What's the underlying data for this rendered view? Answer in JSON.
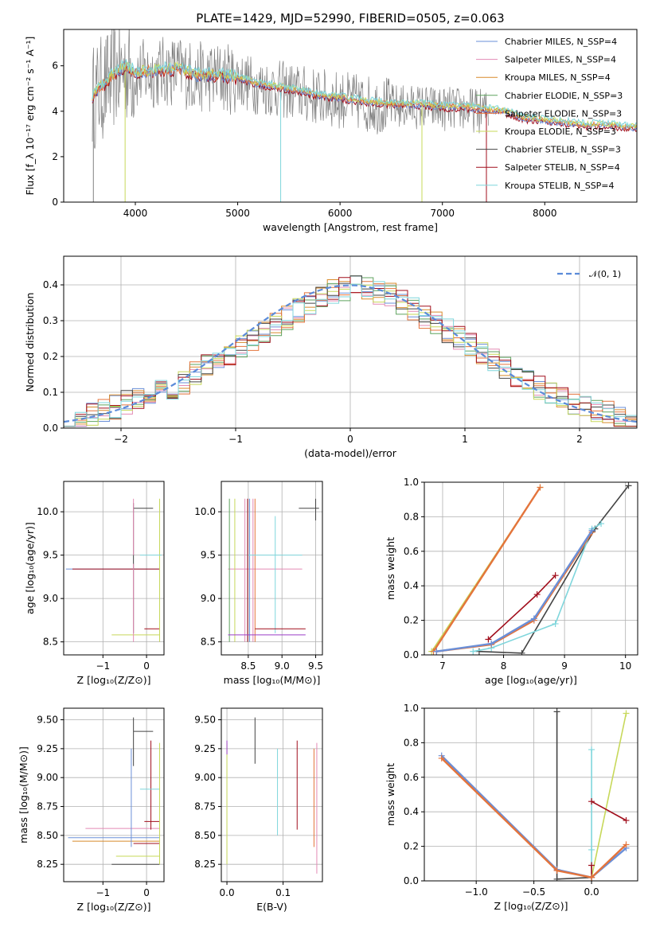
{
  "figure_title": "PLATE=1429, MJD=52990, FIBERID=0505, z=0.063",
  "colors": {
    "chabrier_miles": "#6a8fd8",
    "salpeter_miles": "#e38ab4",
    "kroupa_miles": "#d88a2a",
    "chabrier_elodie": "#5fa35f",
    "salpeter_elodie": "#e4743c",
    "kroupa_elodie": "#c7d85a",
    "chabrier_stelib": "#444444",
    "salpeter_stelib": "#a10e1c",
    "kroupa_stelib": "#7fd6dc",
    "data_spectrum": "#808080",
    "normal_curve": "#5b8bd9",
    "purple": "#9b3fc8"
  },
  "chart_data": [
    {
      "panel": "spectrum",
      "type": "line",
      "title": "PLATE=1429, MJD=52990, FIBERID=0505, z=0.063",
      "xlabel": "wavelength [Angstrom, rest frame]",
      "ylabel": "Flux [f_λ 10⁻¹⁷ erg cm⁻² s⁻¹ A⁻¹]",
      "xlim": [
        3300,
        8900
      ],
      "ylim": [
        0,
        7.6
      ],
      "xticks": [
        "4000",
        "5000",
        "6000",
        "7000",
        "8000"
      ],
      "yticks": [
        "0",
        "2",
        "4",
        "6"
      ],
      "grid": false,
      "legend_position": "top-right",
      "legend": [
        "Chabrier MILES, N_SSP=4",
        "Salpeter MILES, N_SSP=4",
        "Kroupa MILES, N_SSP=4",
        "Chabrier ELODIE, N_SSP=3",
        "Salpeter ELODIE, N_SSP=3",
        "Kroupa ELODIE, N_SSP=3",
        "Chabrier STELIB, N_SSP=3",
        "Salpeter STELIB, N_SSP=4",
        "Kroupa STELIB, N_SSP=4"
      ],
      "model_continuum": {
        "x": [
          3580,
          3700,
          3800,
          3900,
          4000,
          4200,
          4400,
          4600,
          4800,
          5000,
          5200,
          5500,
          5800,
          6000,
          6300,
          6600,
          6800,
          7000,
          7200,
          7400,
          7600,
          7800,
          8000,
          8200,
          8400,
          8600,
          8800
        ],
        "y": [
          4.6,
          5.1,
          5.6,
          5.9,
          5.6,
          5.7,
          5.8,
          5.5,
          5.5,
          5.4,
          5.1,
          4.9,
          4.6,
          4.5,
          4.3,
          4.2,
          4.2,
          4.1,
          4.1,
          4.0,
          3.9,
          3.6,
          3.5,
          3.4,
          3.3,
          3.3,
          3.2
        ]
      },
      "data_spectrum_range": [
        3580,
        7450
      ]
    },
    {
      "panel": "residual_histogram",
      "type": "line",
      "xlabel": "(data-model)/error",
      "ylabel": "Normed distribution",
      "xlim": [
        -2.5,
        2.5
      ],
      "ylim": [
        0,
        0.48
      ],
      "xticks": [
        "−2",
        "−1",
        "0",
        "1",
        "2"
      ],
      "yticks": [
        "0.0",
        "0.1",
        "0.2",
        "0.3",
        "0.4"
      ],
      "grid": true,
      "legend_position": "top-right",
      "legend": [
        "𝒩(0, 1)"
      ],
      "bin_edges_start": -2.5,
      "bin_width": 0.1,
      "hist_base": [
        0.02,
        0.03,
        0.04,
        0.05,
        0.06,
        0.07,
        0.08,
        0.09,
        0.1,
        0.11,
        0.13,
        0.15,
        0.17,
        0.19,
        0.21,
        0.23,
        0.25,
        0.27,
        0.29,
        0.31,
        0.33,
        0.35,
        0.37,
        0.38,
        0.39,
        0.4,
        0.39,
        0.38,
        0.37,
        0.35,
        0.33,
        0.31,
        0.29,
        0.27,
        0.25,
        0.23,
        0.21,
        0.19,
        0.17,
        0.15,
        0.13,
        0.11,
        0.1,
        0.09,
        0.07,
        0.06,
        0.05,
        0.04,
        0.03,
        0.02
      ]
    },
    {
      "panel": "age_vs_Z",
      "type": "scatter",
      "xlabel": "Z [log₁₀(Z/Z⊙)]",
      "ylabel": "age  [log₁₀(age/yr)]",
      "xlim": [
        -1.9,
        0.4
      ],
      "ylim": [
        8.35,
        10.35
      ],
      "xticks": [
        "−1",
        "0"
      ],
      "yticks": [
        "8.5",
        "9.0",
        "9.5",
        "10.0"
      ],
      "grid": true
    },
    {
      "panel": "age_vs_mass",
      "type": "scatter",
      "xlabel": "mass [log₁₀(M/M⊙)]",
      "ylabel": "",
      "xlim": [
        8.1,
        9.6
      ],
      "ylim": [
        8.35,
        10.35
      ],
      "xticks": [
        "8.5",
        "9.0",
        "9.5"
      ],
      "yticks": [
        "8.5",
        "9.0",
        "9.5",
        "10.0"
      ],
      "grid": true
    },
    {
      "panel": "mass_weight_vs_age",
      "type": "line",
      "xlabel": "age  [log₁₀(age/yr)]",
      "ylabel": "mass weight",
      "xlim": [
        6.7,
        10.2
      ],
      "ylim": [
        0,
        1.0
      ],
      "xticks": [
        "7",
        "8",
        "9",
        "10"
      ],
      "yticks": [
        "0.0",
        "0.2",
        "0.4",
        "0.6",
        "0.8",
        "1.0"
      ],
      "grid": true,
      "series": [
        {
          "color": "kroupa_elodie",
          "x": [
            6.82,
            8.6
          ],
          "y": [
            0.02,
            0.97
          ]
        },
        {
          "color": "salpeter_elodie",
          "x": [
            6.85,
            8.6
          ],
          "y": [
            0.02,
            0.97
          ]
        },
        {
          "color": "chabrier_stelib",
          "x": [
            7.6,
            8.3,
            9.5,
            10.05
          ],
          "y": [
            0.02,
            0.01,
            0.73,
            0.98
          ]
        },
        {
          "color": "salpeter_stelib",
          "x": [
            7.75,
            8.55,
            8.85
          ],
          "y": [
            0.09,
            0.35,
            0.46
          ]
        },
        {
          "color": "kroupa_stelib",
          "x": [
            7.5,
            7.8,
            8.85,
            9.45,
            9.6
          ],
          "y": [
            0.02,
            0.04,
            0.18,
            0.73,
            0.76
          ]
        },
        {
          "color": "salpeter_elodie",
          "x": [
            6.9,
            7.8,
            8.5,
            9.45
          ],
          "y": [
            0.02,
            0.06,
            0.2,
            0.71
          ]
        },
        {
          "color": "chabrier_miles",
          "x": [
            6.9,
            7.8,
            8.5,
            9.45
          ],
          "y": [
            0.02,
            0.065,
            0.21,
            0.72
          ]
        }
      ]
    },
    {
      "panel": "mass_vs_Z",
      "type": "scatter",
      "xlabel": "Z [log₁₀(Z/Z⊙)]",
      "ylabel": "mass [log₁₀(M/M⊙)]",
      "xlim": [
        -1.9,
        0.4
      ],
      "ylim": [
        8.1,
        9.6
      ],
      "xticks": [
        "−1",
        "0"
      ],
      "yticks": [
        "8.25",
        "8.50",
        "8.75",
        "9.00",
        "9.25",
        "9.50"
      ],
      "grid": true
    },
    {
      "panel": "mass_vs_ebv",
      "type": "scatter",
      "xlabel": "E(B-V)",
      "ylabel": "",
      "xlim": [
        -0.01,
        0.17
      ],
      "ylim": [
        8.1,
        9.6
      ],
      "xticks": [
        "0.0",
        "0.1"
      ],
      "yticks": [
        "8.25",
        "8.50",
        "8.75",
        "9.00",
        "9.25",
        "9.50"
      ],
      "grid": true
    },
    {
      "panel": "mass_weight_vs_Z",
      "type": "line",
      "xlabel": "Z [log₁₀(Z/Z⊙)]",
      "ylabel": "mass weight",
      "xlim": [
        -1.45,
        0.4
      ],
      "ylim": [
        0,
        1.0
      ],
      "xticks": [
        "−1.0",
        "−0.5",
        "0.0"
      ],
      "yticks": [
        "0.0",
        "0.2",
        "0.4",
        "0.6",
        "0.8",
        "1.0"
      ],
      "grid": true,
      "series": [
        {
          "color": "chabrier_stelib",
          "x": [
            -0.3,
            -0.3,
            0.0
          ],
          "y": [
            0.98,
            0.01,
            0.02
          ]
        },
        {
          "color": "kroupa_stelib",
          "x": [
            0.0,
            0.0,
            0.0
          ],
          "y": [
            0.76,
            0.18,
            0.02
          ]
        },
        {
          "color": "kroupa_elodie",
          "x": [
            0.0,
            0.3
          ],
          "y": [
            0.02,
            0.97
          ]
        },
        {
          "color": "salpeter_stelib",
          "x": [
            0.0,
            0.3
          ],
          "y": [
            0.46,
            0.35
          ]
        },
        {
          "color": "salpeter_stelib",
          "x": [
            0.0,
            0.0
          ],
          "y": [
            0.09,
            0.02
          ]
        },
        {
          "color": "chabrier_miles",
          "x": [
            -1.3,
            -0.3,
            0.0,
            0.3
          ],
          "y": [
            0.725,
            0.065,
            0.02,
            0.19
          ]
        },
        {
          "color": "salpeter_elodie",
          "x": [
            -1.3,
            -0.3,
            0.0,
            0.3
          ],
          "y": [
            0.71,
            0.06,
            0.02,
            0.21
          ]
        }
      ]
    }
  ]
}
